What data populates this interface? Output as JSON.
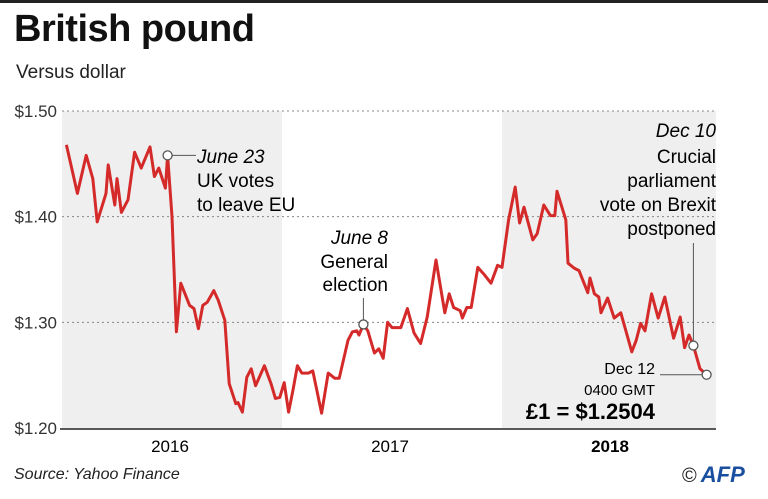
{
  "title": "British pound",
  "subtitle": "Versus dollar",
  "source": "Source: Yahoo Finance",
  "logo": {
    "copyright": "©",
    "text": "AFP"
  },
  "colors": {
    "line": "#d42a2a",
    "band": "#efefef",
    "grid": "#888888",
    "logo": "#1a4fa0"
  },
  "chart_data": {
    "type": "line",
    "title": "British pound",
    "subtitle": "Versus dollar",
    "xlabel": "",
    "ylabel": "",
    "xlim": [
      2016.0,
      2019.0
    ],
    "ylim": [
      1.2,
      1.5
    ],
    "grid": "horizontal dotted",
    "shaded_years": [
      2016,
      2018
    ],
    "y_ticks": [
      {
        "value": 1.5,
        "label": "$1.50"
      },
      {
        "value": 1.4,
        "label": "$1.40"
      },
      {
        "value": 1.3,
        "label": "$1.30"
      },
      {
        "value": 1.2,
        "label": "$1.20"
      }
    ],
    "x_ticks": [
      {
        "value": 2016.5,
        "label": "2016"
      },
      {
        "value": 2017.5,
        "label": "2017"
      },
      {
        "value": 2018.5,
        "label": "2018"
      }
    ],
    "series": [
      {
        "x": [
          2016.02,
          2016.07,
          2016.11,
          2016.14,
          2016.16,
          2016.2,
          2016.21,
          2016.24,
          2016.25,
          2016.27,
          2016.3,
          2016.33,
          2016.36,
          2016.4,
          2016.42,
          2016.44,
          2016.47,
          2016.48,
          2016.5,
          2016.52,
          2016.54,
          2016.58,
          2016.6,
          2016.62,
          2016.64,
          2016.66,
          2016.69,
          2016.71,
          2016.74,
          2016.76,
          2016.79,
          2016.8,
          2016.82,
          2016.84,
          2016.86,
          2016.88,
          2016.92,
          2016.95,
          2016.97,
          2016.99,
          2017.01,
          2017.03,
          2017.05,
          2017.07,
          2017.09,
          2017.12,
          2017.14,
          2017.18,
          2017.21,
          2017.24,
          2017.26,
          2017.3,
          2017.32,
          2017.34,
          2017.35,
          2017.37,
          2017.39,
          2017.42,
          2017.44,
          2017.46,
          2017.48,
          2017.5,
          2017.54,
          2017.57,
          2017.6,
          2017.63,
          2017.66,
          2017.7,
          2017.74,
          2017.76,
          2017.78,
          2017.81,
          2017.82,
          2017.84,
          2017.86,
          2017.89,
          2017.92,
          2017.95,
          2017.98,
          2018.0,
          2018.03,
          2018.06,
          2018.08,
          2018.1,
          2018.14,
          2018.16,
          2018.19,
          2018.22,
          2018.24,
          2018.25,
          2018.29,
          2018.3,
          2018.33,
          2018.35,
          2018.39,
          2018.4,
          2018.42,
          2018.44,
          2018.45,
          2018.48,
          2018.51,
          2018.54,
          2018.59,
          2018.61,
          2018.63,
          2018.65,
          2018.68,
          2018.71,
          2018.74,
          2018.78,
          2018.81,
          2018.83,
          2018.85,
          2018.87,
          2018.9,
          2018.93
        ],
        "y": [
          1.468,
          1.422,
          1.458,
          1.436,
          1.395,
          1.422,
          1.449,
          1.411,
          1.436,
          1.404,
          1.416,
          1.461,
          1.446,
          1.466,
          1.438,
          1.446,
          1.427,
          1.458,
          1.4,
          1.291,
          1.337,
          1.316,
          1.313,
          1.294,
          1.316,
          1.319,
          1.33,
          1.321,
          1.302,
          1.242,
          1.223,
          1.224,
          1.215,
          1.248,
          1.256,
          1.24,
          1.259,
          1.242,
          1.228,
          1.229,
          1.243,
          1.215,
          1.236,
          1.259,
          1.252,
          1.252,
          1.254,
          1.214,
          1.252,
          1.247,
          1.247,
          1.283,
          1.291,
          1.292,
          1.288,
          1.298,
          1.292,
          1.271,
          1.275,
          1.266,
          1.3,
          1.295,
          1.295,
          1.313,
          1.29,
          1.28,
          1.305,
          1.359,
          1.309,
          1.327,
          1.314,
          1.311,
          1.304,
          1.314,
          1.314,
          1.352,
          1.345,
          1.337,
          1.354,
          1.352,
          1.397,
          1.428,
          1.394,
          1.409,
          1.378,
          1.384,
          1.411,
          1.401,
          1.401,
          1.424,
          1.397,
          1.356,
          1.351,
          1.349,
          1.328,
          1.342,
          1.327,
          1.324,
          1.309,
          1.323,
          1.304,
          1.309,
          1.272,
          1.283,
          1.299,
          1.292,
          1.327,
          1.304,
          1.324,
          1.285,
          1.305,
          1.276,
          1.288,
          1.278,
          1.256,
          1.2504
        ]
      }
    ],
    "annotations": [
      {
        "id": "brexit-vote",
        "x": 2016.48,
        "y": 1.458,
        "date": "June 23",
        "lines": [
          "UK votes",
          "to leave EU"
        ]
      },
      {
        "id": "general-election",
        "x": 2017.37,
        "y": 1.298,
        "date": "June 8",
        "lines": [
          "General",
          "election"
        ]
      },
      {
        "id": "vote-postponed",
        "x": 2018.87,
        "y": 1.278,
        "date": "Dec 10",
        "lines": [
          "Crucial",
          "parliament",
          "vote on Brexit",
          "postponed"
        ]
      },
      {
        "id": "latest",
        "x": 2018.93,
        "y": 1.2504,
        "date": "Dec 12",
        "lines": [
          "0400 GMT"
        ],
        "value_label": "£1 = $1.2504"
      }
    ]
  }
}
